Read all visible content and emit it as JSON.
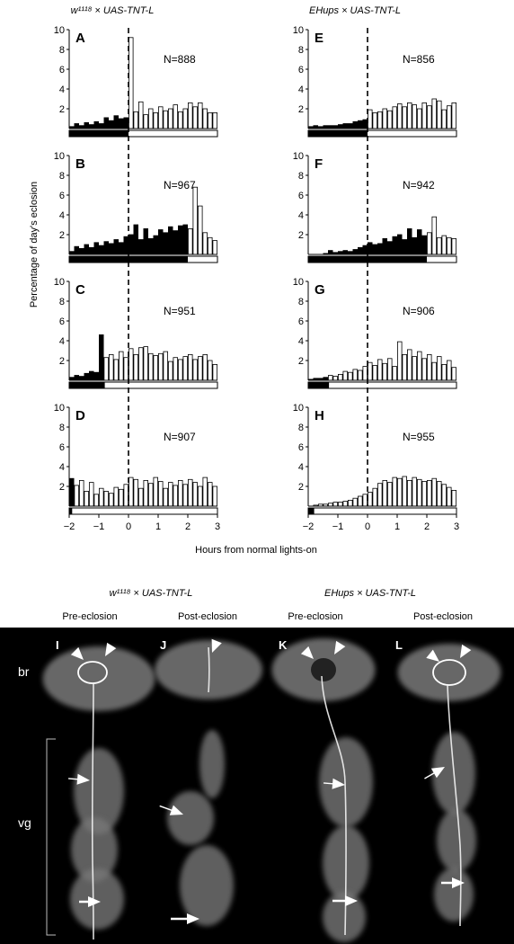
{
  "figure": {
    "top_left_genotype": "w¹¹¹⁸ × UAS-TNT-L",
    "top_right_genotype": "EHups × UAS-TNT-L",
    "y_axis_label": "Percentage of day's eclosion",
    "x_axis_label": "Hours from normal lights-on",
    "bottom_left_genotype": "w¹¹¹⁸ × UAS-TNT-L",
    "bottom_right_genotype": "EHups × UAS-TNT-L",
    "micro": {
      "panels": [
        {
          "letter": "I",
          "stage": "Pre-eclosion"
        },
        {
          "letter": "J",
          "stage": "Post-eclosion"
        },
        {
          "letter": "K",
          "stage": "Pre-eclosion"
        },
        {
          "letter": "L",
          "stage": "Post-eclosion"
        }
      ],
      "label_br": "br",
      "label_vg": "vg"
    }
  },
  "chart_data": [
    {
      "type": "bar",
      "panel": "A",
      "n_label": "N=888",
      "lights_on_at": 0,
      "ylim": [
        0,
        10
      ],
      "yticks": [
        "2",
        "4",
        "6",
        "8",
        "10"
      ],
      "xlim": [
        -2,
        3
      ],
      "xticks": [
        "−2",
        "−1",
        "0",
        "1",
        "2",
        "3"
      ],
      "bin_hours": 0.1667,
      "values": [
        0.2,
        0.5,
        0.3,
        0.6,
        0.4,
        0.7,
        0.5,
        1.1,
        0.8,
        1.3,
        1.0,
        1.1,
        9.2,
        1.7,
        2.7,
        1.4,
        2.0,
        1.6,
        2.2,
        1.8,
        2.0,
        2.4,
        1.7,
        2.0,
        2.6,
        2.2,
        2.6,
        2.0,
        1.6,
        1.6
      ]
    },
    {
      "type": "bar",
      "panel": "B",
      "n_label": "N=967",
      "lights_on_at": 2,
      "ylim": [
        0,
        10
      ],
      "yticks": [
        "2",
        "4",
        "6",
        "8",
        "10"
      ],
      "xlim": [
        -2,
        3
      ],
      "xticks": [
        "−2",
        "−1",
        "0",
        "1",
        "2",
        "3"
      ],
      "bin_hours": 0.1667,
      "values": [
        0.3,
        0.8,
        0.6,
        1.0,
        0.7,
        1.2,
        0.9,
        1.3,
        1.1,
        1.5,
        1.2,
        1.8,
        2.0,
        3.0,
        1.5,
        2.6,
        1.6,
        1.9,
        2.5,
        2.2,
        2.8,
        2.4,
        2.9,
        3.0,
        2.6,
        6.8,
        4.9,
        2.2,
        1.7,
        1.4
      ]
    },
    {
      "type": "bar",
      "panel": "C",
      "n_label": "N=951",
      "lights_on_at": -0.8,
      "ylim": [
        0,
        10
      ],
      "yticks": [
        "2",
        "4",
        "6",
        "8",
        "10"
      ],
      "xlim": [
        -2,
        3
      ],
      "xticks": [
        "−2",
        "−1",
        "0",
        "1",
        "2",
        "3"
      ],
      "bin_hours": 0.1667,
      "values": [
        0.3,
        0.5,
        0.4,
        0.7,
        0.9,
        0.8,
        4.6,
        2.3,
        2.6,
        2.1,
        2.9,
        2.3,
        3.2,
        2.6,
        3.3,
        3.4,
        2.7,
        2.5,
        2.7,
        2.9,
        1.9,
        2.3,
        2.1,
        2.4,
        2.6,
        2.1,
        2.4,
        2.6,
        2.0,
        1.6
      ]
    },
    {
      "type": "bar",
      "panel": "D",
      "n_label": "N=907",
      "lights_on_at": -1.9,
      "ylim": [
        0,
        10
      ],
      "yticks": [
        "2",
        "4",
        "6",
        "8",
        "10"
      ],
      "xlim": [
        -2,
        3
      ],
      "xticks": [
        "−2",
        "−1",
        "0",
        "1",
        "2",
        "3"
      ],
      "bin_hours": 0.1667,
      "values": [
        2.8,
        2.1,
        2.6,
        1.5,
        2.4,
        1.2,
        1.8,
        1.5,
        1.3,
        1.9,
        1.7,
        2.2,
        2.9,
        2.7,
        1.8,
        2.6,
        2.3,
        2.9,
        2.5,
        1.8,
        2.4,
        2.1,
        2.6,
        2.2,
        2.7,
        2.4,
        2.0,
        2.9,
        2.4,
        2.0
      ]
    },
    {
      "type": "bar",
      "panel": "E",
      "n_label": "N=856",
      "lights_on_at": 0,
      "ylim": [
        0,
        10
      ],
      "yticks": [
        "2",
        "4",
        "6",
        "8",
        "10"
      ],
      "xlim": [
        -2,
        3
      ],
      "xticks": [
        "−2",
        "−1",
        "0",
        "1",
        "2",
        "3"
      ],
      "bin_hours": 0.1667,
      "values": [
        0.2,
        0.3,
        0.2,
        0.3,
        0.3,
        0.3,
        0.4,
        0.5,
        0.5,
        0.7,
        0.8,
        0.9,
        1.9,
        1.6,
        1.7,
        2.0,
        1.8,
        2.2,
        2.5,
        2.2,
        2.6,
        2.4,
        2.0,
        2.6,
        2.3,
        3.0,
        2.8,
        1.9,
        2.3,
        2.6
      ]
    },
    {
      "type": "bar",
      "panel": "F",
      "n_label": "N=942",
      "lights_on_at": 2,
      "ylim": [
        0,
        10
      ],
      "yticks": [
        "2",
        "4",
        "6",
        "8",
        "10"
      ],
      "xlim": [
        -2,
        3
      ],
      "xticks": [
        "−2",
        "−1",
        "0",
        "1",
        "2",
        "3"
      ],
      "bin_hours": 0.1667,
      "values": [
        0.0,
        0.0,
        0.0,
        0.1,
        0.4,
        0.2,
        0.3,
        0.4,
        0.3,
        0.5,
        0.7,
        0.9,
        1.2,
        1.0,
        1.1,
        1.6,
        1.3,
        1.8,
        2.0,
        1.5,
        2.6,
        1.7,
        2.5,
        1.9,
        2.2,
        3.8,
        1.7,
        1.9,
        1.7,
        1.6
      ]
    },
    {
      "type": "bar",
      "panel": "G",
      "n_label": "N=906",
      "lights_on_at": -1.3,
      "ylim": [
        0,
        10
      ],
      "yticks": [
        "2",
        "4",
        "6",
        "8",
        "10"
      ],
      "xlim": [
        -2,
        3
      ],
      "xticks": [
        "−2",
        "−1",
        "0",
        "1",
        "2",
        "3"
      ],
      "bin_hours": 0.1667,
      "values": [
        0.1,
        0.2,
        0.2,
        0.3,
        0.5,
        0.4,
        0.6,
        0.9,
        0.8,
        1.1,
        1.0,
        1.4,
        1.8,
        1.5,
        2.1,
        1.7,
        2.2,
        1.4,
        3.9,
        2.6,
        3.1,
        2.4,
        2.9,
        2.2,
        2.6,
        1.8,
        2.4,
        1.6,
        2.0,
        1.3
      ]
    },
    {
      "type": "bar",
      "panel": "H",
      "n_label": "N=955",
      "lights_on_at": -1.8,
      "ylim": [
        0,
        10
      ],
      "yticks": [
        "2",
        "4",
        "6",
        "8",
        "10"
      ],
      "xlim": [
        -2,
        3
      ],
      "xticks": [
        "−2",
        "−1",
        "0",
        "1",
        "2",
        "3"
      ],
      "bin_hours": 0.1667,
      "values": [
        0.0,
        0.1,
        0.2,
        0.2,
        0.3,
        0.4,
        0.4,
        0.5,
        0.6,
        0.8,
        1.0,
        1.2,
        1.4,
        1.8,
        2.3,
        2.6,
        2.4,
        2.9,
        2.8,
        3.0,
        2.6,
        2.9,
        2.7,
        2.5,
        2.6,
        2.8,
        2.5,
        2.2,
        1.9,
        1.6
      ]
    }
  ]
}
